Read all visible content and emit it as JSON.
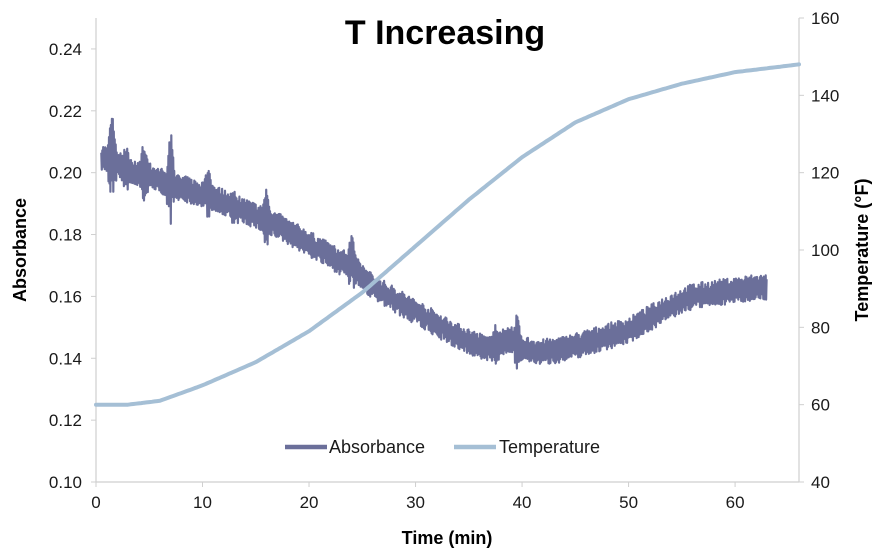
{
  "chart_data": {
    "type": "line",
    "title": "T Increasing",
    "xlabel": "Time (min)",
    "ylabel": "Absorbance",
    "y2label": "Temperature (°F)",
    "xlim": [
      0,
      66
    ],
    "ylim": [
      0.1,
      0.25
    ],
    "y2lim": [
      40,
      160
    ],
    "x_ticks": [
      "0",
      "10",
      "20",
      "30",
      "40",
      "50",
      "60"
    ],
    "y_ticks": [
      "0.10",
      "0.12",
      "0.14",
      "0.16",
      "0.18",
      "0.20",
      "0.22",
      "0.24"
    ],
    "y2_ticks": [
      "40",
      "60",
      "80",
      "100",
      "120",
      "140",
      "160"
    ],
    "grid": false,
    "legend_position": "bottom-center",
    "series": [
      {
        "name": "Absorbance",
        "axis": "left",
        "color": "#6b6f9a",
        "noisy": true,
        "x": [
          0.5,
          1.5,
          3,
          5,
          7,
          9,
          11,
          13,
          15,
          17,
          19,
          21,
          23,
          24,
          26,
          28,
          30,
          32,
          34,
          36,
          37,
          38,
          39,
          40,
          42,
          44,
          46,
          48,
          50,
          52,
          54,
          56,
          58,
          60,
          62,
          63
        ],
        "values": [
          0.205,
          0.204,
          0.201,
          0.199,
          0.196,
          0.194,
          0.192,
          0.189,
          0.186,
          0.183,
          0.179,
          0.175,
          0.171,
          0.17,
          0.163,
          0.159,
          0.155,
          0.151,
          0.147,
          0.144,
          0.143,
          0.145,
          0.146,
          0.143,
          0.142,
          0.143,
          0.145,
          0.147,
          0.149,
          0.153,
          0.157,
          0.16,
          0.161,
          0.162,
          0.163,
          0.163
        ],
        "spikes": [
          {
            "x": 1.5,
            "value": 0.223
          },
          {
            "x": 2.8,
            "value": 0.21
          },
          {
            "x": 4.5,
            "value": 0.211
          },
          {
            "x": 7.0,
            "value": 0.215
          },
          {
            "x": 10.5,
            "value": 0.204
          },
          {
            "x": 13.0,
            "value": 0.195
          },
          {
            "x": 16.0,
            "value": 0.197
          },
          {
            "x": 24.0,
            "value": 0.182
          },
          {
            "x": 37.5,
            "value": 0.152
          },
          {
            "x": 39.5,
            "value": 0.155
          }
        ]
      },
      {
        "name": "Temperature",
        "axis": "right",
        "color": "#a5bfd5",
        "x": [
          0,
          3,
          6,
          10,
          15,
          20,
          25,
          30,
          35,
          40,
          45,
          50,
          55,
          60,
          66
        ],
        "values": [
          60,
          60,
          61,
          65,
          71,
          79,
          89,
          101,
          113,
          124,
          133,
          139,
          143,
          146,
          148
        ]
      }
    ]
  }
}
